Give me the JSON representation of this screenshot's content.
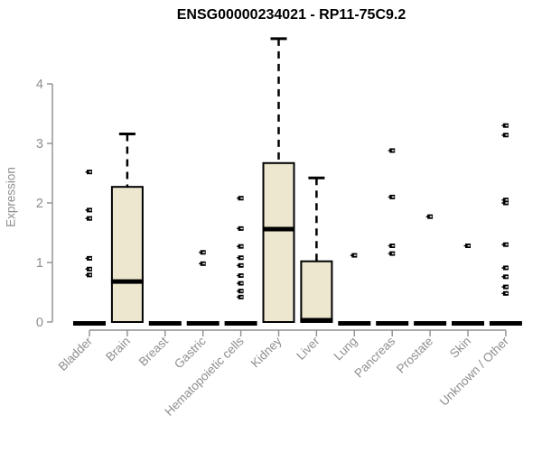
{
  "chart_data": {
    "type": "boxplot",
    "title": "ENSG00000234021 - RP11-75C9.2",
    "ylabel": "Expression",
    "xlabel": "",
    "yticks": [
      0,
      1,
      2,
      3,
      4
    ],
    "ylim": [
      0,
      4.95
    ],
    "grid": false,
    "legend": "none",
    "categories": [
      "Bladder",
      "Brain",
      "Breast",
      "Gastric",
      "Hematopoietic cells",
      "Kidney",
      "Liver",
      "Lung",
      "Pancreas",
      "Prostate",
      "Skin",
      "Unknown / Other"
    ],
    "groups": [
      {
        "category": "Bladder",
        "q1": 0,
        "median": 0,
        "q3": 0,
        "whisker_low": 0,
        "whisker_high": 0,
        "outliers": [
          2.52,
          1.88,
          1.74,
          1.07,
          0.89,
          0.79
        ]
      },
      {
        "category": "Brain",
        "q1": 0,
        "median": 0.68,
        "q3": 2.27,
        "whisker_low": 0,
        "whisker_high": 3.16,
        "outliers": []
      },
      {
        "category": "Breast",
        "q1": 0,
        "median": 0,
        "q3": 0,
        "whisker_low": 0,
        "whisker_high": 0,
        "outliers": []
      },
      {
        "category": "Gastric",
        "q1": 0,
        "median": 0,
        "q3": 0,
        "whisker_low": 0,
        "whisker_high": 0,
        "outliers": [
          1.17,
          0.98
        ]
      },
      {
        "category": "Hematopoietic cells",
        "q1": 0,
        "median": 0,
        "q3": 0,
        "whisker_low": 0,
        "whisker_high": 0,
        "outliers": [
          2.08,
          1.57,
          1.27,
          1.08,
          0.95,
          0.78,
          0.65,
          0.52,
          0.42
        ]
      },
      {
        "category": "Kidney",
        "q1": 0,
        "median": 1.56,
        "q3": 2.67,
        "whisker_low": 0,
        "whisker_high": 4.76,
        "outliers": []
      },
      {
        "category": "Liver",
        "q1": 0,
        "median": 0.03,
        "q3": 1.02,
        "whisker_low": 0,
        "whisker_high": 2.42,
        "outliers": []
      },
      {
        "category": "Lung",
        "q1": 0,
        "median": 0,
        "q3": 0,
        "whisker_low": 0,
        "whisker_high": 0,
        "outliers": [
          1.12
        ]
      },
      {
        "category": "Pancreas",
        "q1": 0,
        "median": 0,
        "q3": 0,
        "whisker_low": 0,
        "whisker_high": 0,
        "outliers": [
          2.88,
          2.1,
          1.28,
          1.15
        ]
      },
      {
        "category": "Prostate",
        "q1": 0,
        "median": 0,
        "q3": 0,
        "whisker_low": 0,
        "whisker_high": 0,
        "outliers": [
          1.77
        ]
      },
      {
        "category": "Skin",
        "q1": 0,
        "median": 0,
        "q3": 0,
        "whisker_low": 0,
        "whisker_high": 0,
        "outliers": [
          1.28
        ]
      },
      {
        "category": "Unknown / Other",
        "q1": 0,
        "median": 0,
        "q3": 0,
        "whisker_low": 0,
        "whisker_high": 0,
        "outliers": [
          3.3,
          3.14,
          2.05,
          2.0,
          1.3,
          0.91,
          0.76,
          0.59,
          0.48
        ]
      }
    ],
    "colors": {
      "box_fill": "#ECE7CE",
      "box_stroke": "#000000",
      "median": "#000000",
      "whisker": "#000000",
      "outlier": "#000000",
      "axis": "#8e8e8e",
      "tick_label": "#8e8e8e",
      "title": "#000000"
    }
  }
}
